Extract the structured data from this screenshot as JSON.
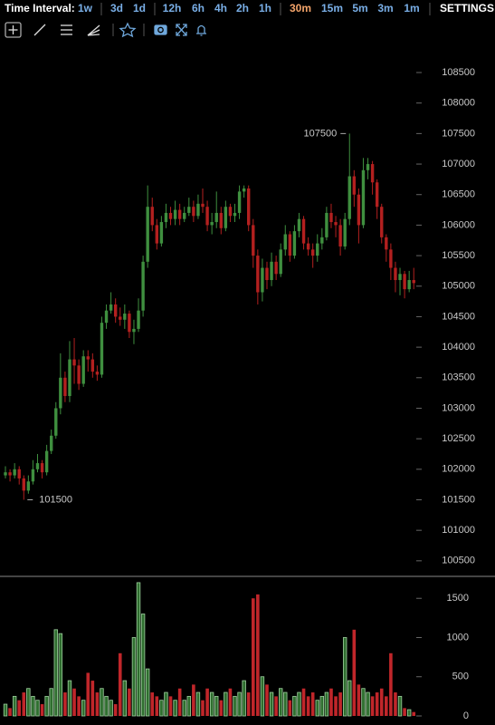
{
  "toolbar": {
    "label": "Time Interval:",
    "intervals": [
      "1w",
      "3d",
      "1d",
      "12h",
      "6h",
      "4h",
      "2h",
      "1h",
      "30m",
      "15m",
      "5m",
      "3m",
      "1m"
    ],
    "active_index": 8,
    "settings": "SETTINGS"
  },
  "chart_data": [
    {
      "type": "candlestick",
      "up_color": "#3f8f3f",
      "down_color": "#b3201f",
      "ylim": [
        100260,
        109020
      ],
      "yticks": [
        100500,
        101000,
        101500,
        102000,
        102500,
        103000,
        103500,
        104000,
        104500,
        105000,
        105500,
        106000,
        106500,
        107000,
        107500,
        108000,
        108500
      ],
      "open": [
        101900,
        101950,
        101900,
        102000,
        101850,
        101650,
        101800,
        102000,
        102100,
        101950,
        102300,
        102550,
        103000,
        103500,
        103200,
        103800,
        103700,
        103400,
        103850,
        103800,
        103600,
        103550,
        104400,
        104600,
        104700,
        104500,
        104450,
        104550,
        104250,
        104300,
        104600,
        105400,
        106300,
        106000,
        105700,
        106050,
        106200,
        106100,
        106250,
        106100,
        106200,
        106300,
        106150,
        106350,
        106300,
        106000,
        106050,
        106200,
        105950,
        106300,
        106150,
        106200,
        106550,
        106600,
        106000,
        105500,
        104900,
        105300,
        105100,
        105400,
        105200,
        105600,
        105850,
        105500,
        105900,
        106100,
        105700,
        105600,
        105500,
        105700,
        105800,
        106200,
        106050,
        106000,
        105650,
        106100,
        106800,
        106500,
        106000,
        106900,
        107000,
        106700,
        106300,
        105800,
        105600,
        105300,
        105100,
        105200,
        104950,
        105100
      ],
      "high": [
        102050,
        102000,
        102100,
        102050,
        101900,
        101900,
        102150,
        102250,
        102150,
        102400,
        102650,
        103100,
        103900,
        103600,
        104100,
        104150,
        103800,
        103950,
        103950,
        103900,
        103700,
        104500,
        104700,
        104900,
        104800,
        104650,
        104700,
        104600,
        104450,
        104800,
        105500,
        106650,
        106450,
        106100,
        106150,
        106350,
        106300,
        106400,
        106350,
        106300,
        106450,
        106400,
        106500,
        106600,
        106400,
        106200,
        106550,
        106300,
        106400,
        106350,
        106350,
        106650,
        106650,
        106650,
        106100,
        105600,
        105450,
        105400,
        105550,
        105500,
        105700,
        106000,
        105900,
        106000,
        106200,
        106150,
        105800,
        105700,
        105850,
        105950,
        106300,
        106350,
        106150,
        106100,
        106200,
        107500,
        106900,
        106600,
        107100,
        107100,
        107050,
        106750,
        106350,
        105850,
        105700,
        105400,
        105300,
        105250,
        105250,
        105300
      ],
      "low": [
        101850,
        101800,
        101850,
        101750,
        101500,
        101600,
        101750,
        101950,
        101850,
        101900,
        102250,
        102500,
        102900,
        103100,
        103100,
        103400,
        103300,
        103350,
        103600,
        103500,
        103450,
        103500,
        104300,
        104550,
        104400,
        104350,
        104300,
        104150,
        104050,
        104250,
        104500,
        105300,
        105900,
        105600,
        105650,
        105950,
        106000,
        106000,
        106000,
        106050,
        106150,
        106050,
        106100,
        106200,
        105900,
        105850,
        105950,
        105850,
        105900,
        106050,
        106050,
        106100,
        106450,
        105900,
        105300,
        104700,
        104750,
        104950,
        105000,
        105100,
        105150,
        105500,
        105400,
        105450,
        105800,
        105600,
        105500,
        105300,
        105400,
        105600,
        105750,
        105950,
        105800,
        105500,
        105600,
        106000,
        106300,
        105700,
        105950,
        106750,
        106500,
        106100,
        105700,
        105400,
        105100,
        104900,
        104850,
        104800,
        104900,
        104950
      ],
      "close": [
        101950,
        101900,
        102000,
        101850,
        101650,
        101800,
        102000,
        102100,
        101950,
        102300,
        102550,
        103000,
        103500,
        103200,
        103800,
        103700,
        103400,
        103850,
        103800,
        103600,
        103550,
        104400,
        104600,
        104700,
        104500,
        104450,
        104550,
        104250,
        104300,
        104600,
        105400,
        106300,
        106000,
        105700,
        106050,
        106200,
        106100,
        106250,
        106100,
        106200,
        106300,
        106150,
        106350,
        106300,
        106000,
        106050,
        106200,
        105950,
        106300,
        106150,
        106200,
        106550,
        106600,
        106000,
        105500,
        104900,
        105300,
        105100,
        105400,
        105200,
        105600,
        105850,
        105500,
        105900,
        106100,
        105700,
        105600,
        105500,
        105700,
        105800,
        106200,
        106050,
        106000,
        105650,
        106100,
        106800,
        106500,
        106000,
        106900,
        107000,
        106700,
        106300,
        105800,
        105600,
        105300,
        105100,
        105200,
        104950,
        105100,
        105050
      ]
    },
    {
      "type": "volume",
      "ylim": [
        0,
        1780
      ],
      "yticks": [
        0,
        500,
        1000,
        1500
      ],
      "up_color": "#2f6e2f",
      "up_edge": "#9fd09f",
      "down_color": "#c0262a",
      "values": [
        150,
        100,
        250,
        200,
        300,
        350,
        250,
        200,
        150,
        250,
        350,
        1100,
        1050,
        300,
        450,
        350,
        250,
        200,
        550,
        450,
        300,
        350,
        250,
        200,
        150,
        800,
        450,
        350,
        1000,
        1700,
        1300,
        600,
        300,
        250,
        200,
        300,
        250,
        200,
        350,
        200,
        250,
        400,
        300,
        200,
        350,
        300,
        250,
        200,
        300,
        350,
        250,
        300,
        450,
        300,
        1500,
        1550,
        500,
        400,
        300,
        250,
        350,
        300,
        200,
        250,
        300,
        350,
        250,
        300,
        200,
        250,
        300,
        350,
        250,
        300,
        1000,
        450,
        1100,
        400,
        350,
        300,
        250,
        300,
        350,
        250,
        800,
        300,
        250,
        100,
        80,
        50
      ]
    }
  ]
}
